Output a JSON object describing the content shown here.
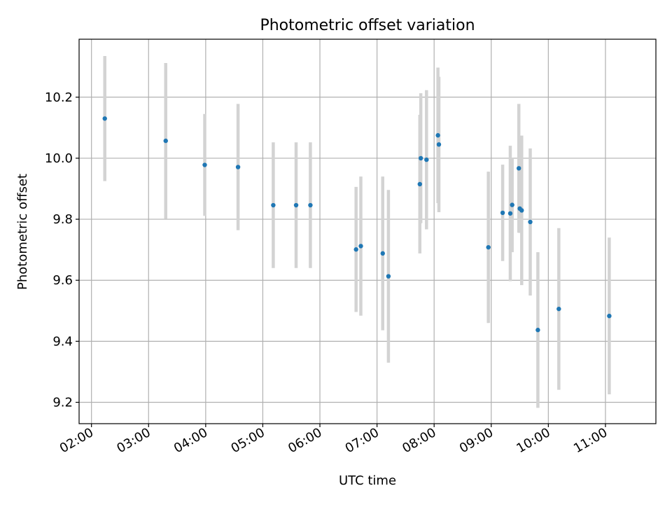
{
  "colors": {
    "point": "#1f77b4",
    "errorbar": "#d3d3d3",
    "grid": "#b0b0b0",
    "axes": "#000000",
    "background": "#ffffff"
  },
  "chart_data": {
    "type": "scatter",
    "title": "Photometric offset variation",
    "xlabel": "UTC time",
    "ylabel": "Photometric offset",
    "grid": true,
    "x_unit": "time",
    "xlim": [
      "01:47",
      "11:53"
    ],
    "ylim": [
      9.13,
      10.39
    ],
    "x_ticks": [
      "02:00",
      "03:00",
      "04:00",
      "05:00",
      "06:00",
      "07:00",
      "08:00",
      "09:00",
      "10:00",
      "11:00"
    ],
    "y_ticks": [
      "9.2",
      "9.4",
      "9.6",
      "9.8",
      "10.0",
      "10.2"
    ],
    "series": [
      {
        "points": [
          {
            "x": "02:14",
            "y": 10.13,
            "err": 0.205
          },
          {
            "x": "03:18",
            "y": 10.057,
            "err": 0.255
          },
          {
            "x": "03:59",
            "y": 9.978,
            "err": 0.167
          },
          {
            "x": "04:34",
            "y": 9.971,
            "err": 0.207
          },
          {
            "x": "05:11",
            "y": 9.846,
            "err": 0.206
          },
          {
            "x": "05:35",
            "y": 9.846,
            "err": 0.206
          },
          {
            "x": "05:50",
            "y": 9.846,
            "err": 0.206
          },
          {
            "x": "06:38",
            "y": 9.701,
            "err": 0.205
          },
          {
            "x": "06:43",
            "y": 9.712,
            "err": 0.228
          },
          {
            "x": "07:06",
            "y": 9.688,
            "err": 0.252
          },
          {
            "x": "07:12",
            "y": 9.613,
            "err": 0.283
          },
          {
            "x": "07:45",
            "y": 9.915,
            "err": 0.227
          },
          {
            "x": "07:46",
            "y": 10.0,
            "err": 0.213
          },
          {
            "x": "07:52",
            "y": 9.995,
            "err": 0.228
          },
          {
            "x": "08:04",
            "y": 10.075,
            "err": 0.222
          },
          {
            "x": "08:05",
            "y": 10.045,
            "err": 0.222
          },
          {
            "x": "08:57",
            "y": 9.708,
            "err": 0.248
          },
          {
            "x": "09:12",
            "y": 9.821,
            "err": 0.158
          },
          {
            "x": "09:20",
            "y": 9.819,
            "err": 0.222
          },
          {
            "x": "09:22",
            "y": 9.847,
            "err": 0.155
          },
          {
            "x": "09:29",
            "y": 9.967,
            "err": 0.211
          },
          {
            "x": "09:30",
            "y": 9.835,
            "err": 0.08
          },
          {
            "x": "09:32",
            "y": 9.829,
            "err": 0.245
          },
          {
            "x": "09:41",
            "y": 9.791,
            "err": 0.241
          },
          {
            "x": "09:49",
            "y": 9.437,
            "err": 0.255
          },
          {
            "x": "10:11",
            "y": 9.506,
            "err": 0.265
          },
          {
            "x": "11:04",
            "y": 9.483,
            "err": 0.257
          }
        ]
      }
    ]
  }
}
